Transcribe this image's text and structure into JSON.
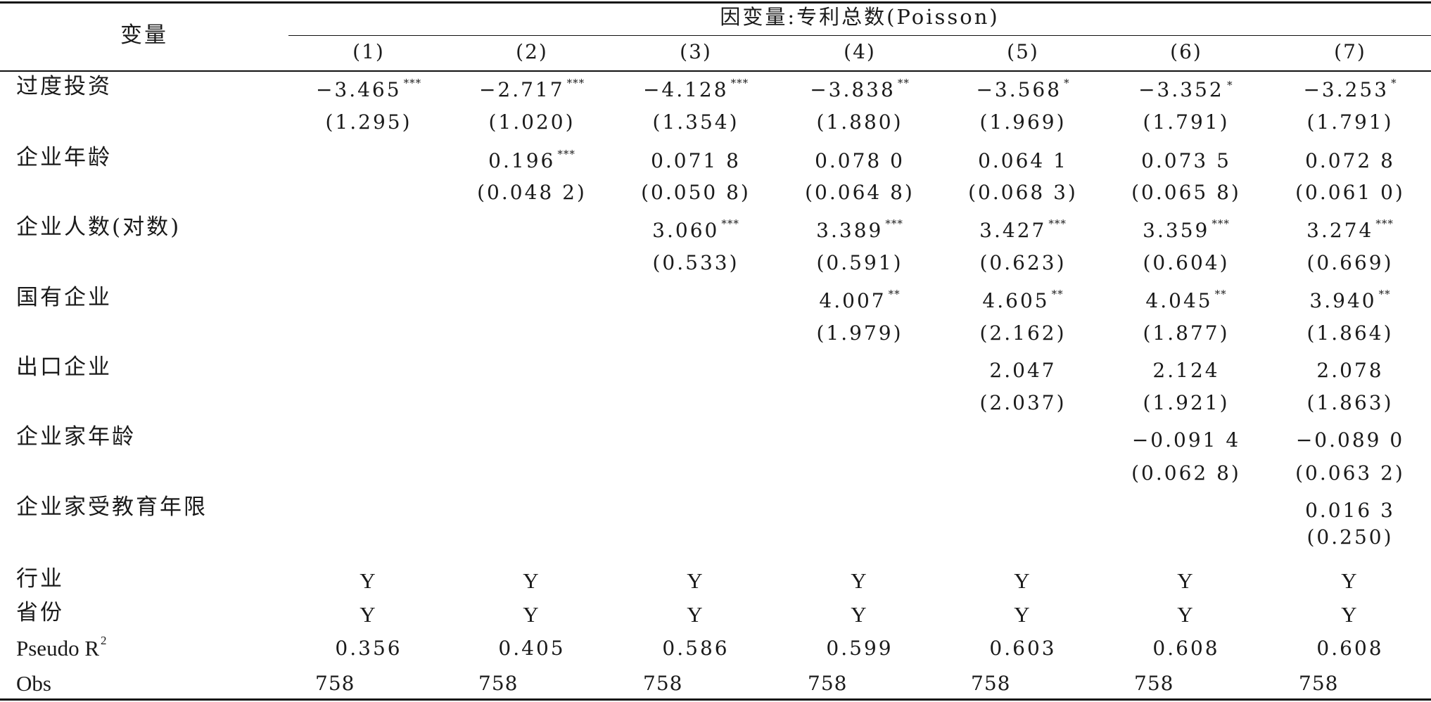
{
  "table": {
    "variable_header": "变量",
    "group_header": "因变量:专利总数(Poisson)",
    "columns": [
      "(1)",
      "(2)",
      "(3)",
      "(4)",
      "(5)",
      "(6)",
      "(7)"
    ],
    "rows": [
      {
        "label": "过度投资",
        "coef": [
          {
            "v": "−3.465",
            "s": "***"
          },
          {
            "v": "−2.717",
            "s": "***"
          },
          {
            "v": "−4.128",
            "s": "***"
          },
          {
            "v": "−3.838",
            "s": "**"
          },
          {
            "v": "−3.568",
            "s": "*"
          },
          {
            "v": "−3.352",
            "s": "∗"
          },
          {
            "v": "−3.253",
            "s": "*"
          }
        ],
        "se": [
          "(1.295)",
          "(1.020)",
          "(1.354)",
          "(1.880)",
          "(1.969)",
          "(1.791)",
          "(1.791)"
        ]
      },
      {
        "label": "企业年龄",
        "coef": [
          null,
          {
            "v": "0.196",
            "s": "***"
          },
          {
            "v": "0.071 8",
            "s": ""
          },
          {
            "v": "0.078 0",
            "s": ""
          },
          {
            "v": "0.064 1",
            "s": ""
          },
          {
            "v": "0.073 5",
            "s": ""
          },
          {
            "v": "0.072 8",
            "s": ""
          }
        ],
        "se": [
          null,
          "(0.048 2)",
          "(0.050 8)",
          "(0.064 8)",
          "(0.068 3)",
          "(0.065 8)",
          "(0.061 0)"
        ]
      },
      {
        "label": "企业人数(对数)",
        "coef": [
          null,
          null,
          {
            "v": "3.060",
            "s": "***"
          },
          {
            "v": "3.389",
            "s": "***"
          },
          {
            "v": "3.427",
            "s": "***"
          },
          {
            "v": "3.359",
            "s": "***"
          },
          {
            "v": "3.274",
            "s": "***"
          }
        ],
        "se": [
          null,
          null,
          "(0.533)",
          "(0.591)",
          "(0.623)",
          "(0.604)",
          "(0.669)"
        ]
      },
      {
        "label": "国有企业",
        "coef": [
          null,
          null,
          null,
          {
            "v": "4.007",
            "s": "**"
          },
          {
            "v": "4.605",
            "s": "**"
          },
          {
            "v": "4.045",
            "s": "**"
          },
          {
            "v": "3.940",
            "s": "**"
          }
        ],
        "se": [
          null,
          null,
          null,
          "(1.979)",
          "(2.162)",
          "(1.877)",
          "(1.864)"
        ]
      },
      {
        "label": "出口企业",
        "coef": [
          null,
          null,
          null,
          null,
          {
            "v": "2.047",
            "s": ""
          },
          {
            "v": "2.124",
            "s": ""
          },
          {
            "v": "2.078",
            "s": ""
          }
        ],
        "se": [
          null,
          null,
          null,
          null,
          "(2.037)",
          "(1.921)",
          "(1.863)"
        ]
      },
      {
        "label": "企业家年龄",
        "coef": [
          null,
          null,
          null,
          null,
          null,
          {
            "v": "−0.091 4",
            "s": ""
          },
          {
            "v": "−0.089 0",
            "s": ""
          }
        ],
        "se": [
          null,
          null,
          null,
          null,
          null,
          "(0.062 8)",
          "(0.063 2)"
        ]
      },
      {
        "label": "企业家受教育年限",
        "coef": [
          null,
          null,
          null,
          null,
          null,
          null,
          {
            "v": "0.016 3",
            "s": ""
          }
        ],
        "se": [
          null,
          null,
          null,
          null,
          null,
          null,
          "(0.250)"
        ]
      }
    ],
    "fixed_effects": [
      {
        "label": "行业",
        "values": [
          "Y",
          "Y",
          "Y",
          "Y",
          "Y",
          "Y",
          "Y"
        ]
      },
      {
        "label": "省份",
        "values": [
          "Y",
          "Y",
          "Y",
          "Y",
          "Y",
          "Y",
          "Y"
        ]
      }
    ],
    "pseudo_r2": {
      "label": "Pseudo R",
      "label_sup": "2",
      "values": [
        "0.356",
        "0.405",
        "0.586",
        "0.599",
        "0.603",
        "0.608",
        "0.608"
      ]
    },
    "obs": {
      "label": "Obs",
      "values": [
        "758",
        "758",
        "758",
        "758",
        "758",
        "758",
        "758"
      ]
    }
  }
}
